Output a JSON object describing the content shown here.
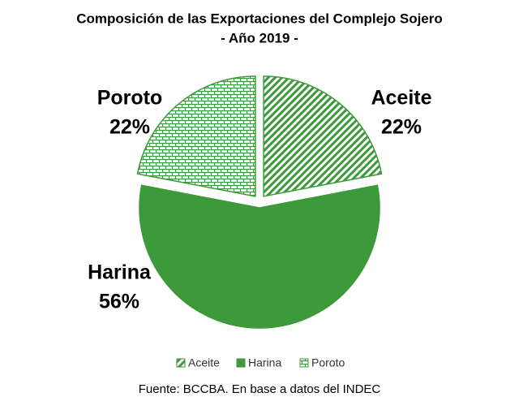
{
  "chart_data": {
    "type": "pie",
    "title": "Composición de las Exportaciones del Complejo Sojero",
    "subtitle": "- Año 2019 -",
    "categories": [
      "Aceite",
      "Harina",
      "Poroto"
    ],
    "values": [
      22,
      56,
      22
    ],
    "value_labels": [
      "22%",
      "56%",
      "22%"
    ],
    "colors": [
      "#3d9a3a",
      "#3d9a3a",
      "#3d9a3a"
    ],
    "patterns": [
      "diagonal",
      "solid",
      "brick"
    ],
    "legend": "bottom",
    "source": "Fuente: BCCBA. En base a datos del INDEC"
  }
}
